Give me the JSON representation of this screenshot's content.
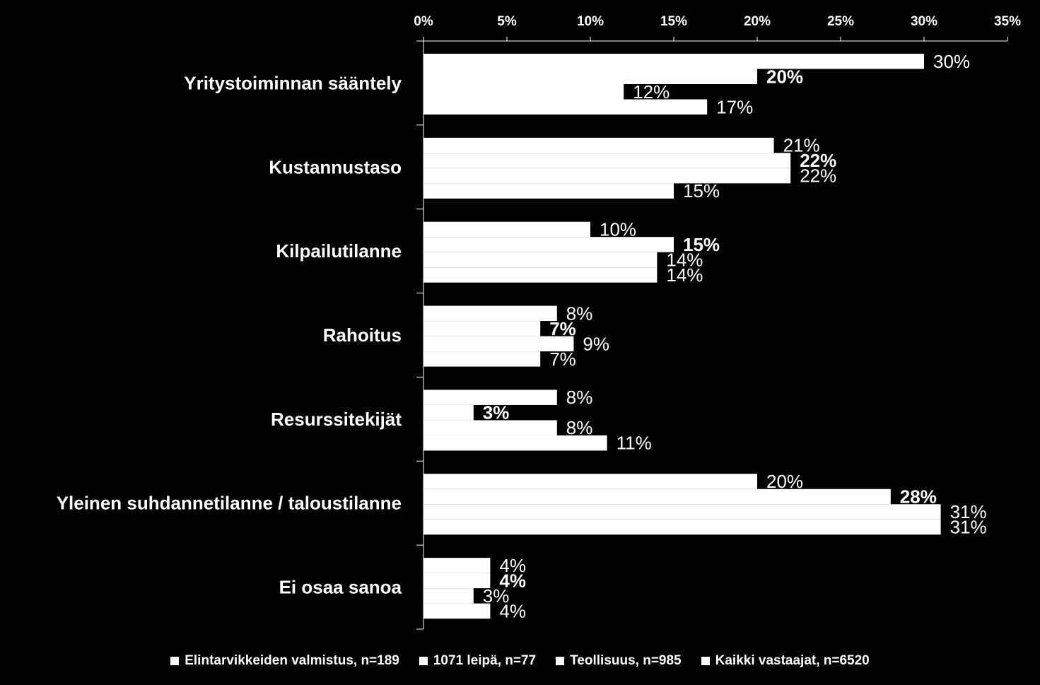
{
  "chart_data": {
    "type": "bar",
    "orientation": "horizontal",
    "axis_position": "top",
    "xlim": [
      0,
      35
    ],
    "ticks": [
      0,
      5,
      10,
      15,
      20,
      25,
      30,
      35
    ],
    "tick_labels": [
      "0%",
      "5%",
      "10%",
      "15%",
      "20%",
      "25%",
      "30%",
      "35%"
    ],
    "categories": [
      "Yritystoiminnan sääntely",
      "Kustannustaso",
      "Kilpailutilanne",
      "Rahoitus",
      "Resurssitekijät",
      "Yleinen suhdannetilanne / taloustilanne",
      "Ei osaa sanoa"
    ],
    "series": [
      {
        "name": "Elintarvikkeiden valmistus, n=189",
        "values": [
          30,
          21,
          10,
          8,
          8,
          20,
          4
        ],
        "labels": [
          "30%",
          "21%",
          "10%",
          "8%",
          "8%",
          "20%",
          "4%"
        ],
        "bold": false
      },
      {
        "name": "1071 leipä, n=77",
        "values": [
          20,
          22,
          15,
          7,
          3,
          28,
          4
        ],
        "labels": [
          "20%",
          "22%",
          "15%",
          "7%",
          "3%",
          "28%",
          "4%"
        ],
        "bold": true
      },
      {
        "name": "Teollisuus, n=985",
        "values": [
          12,
          22,
          14,
          9,
          8,
          31,
          3
        ],
        "labels": [
          "12%",
          "22%",
          "14%",
          "9%",
          "8%",
          "31%",
          "3%"
        ],
        "bold": false
      },
      {
        "name": "Kaikki vastaajat, n=6520",
        "values": [
          17,
          15,
          14,
          7,
          11,
          31,
          4
        ],
        "labels": [
          "17%",
          "15%",
          "14%",
          "7%",
          "11%",
          "31%",
          "4%"
        ],
        "bold": false
      }
    ],
    "colors": {
      "background": "#000000",
      "bars": "#ffffff",
      "text": "#ffffff"
    },
    "legend_position": "bottom",
    "grid": false
  }
}
